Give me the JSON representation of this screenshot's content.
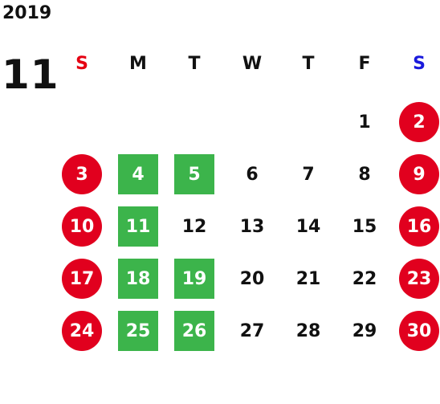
{
  "calendar": {
    "year": "2019",
    "month": "11",
    "weekdays": [
      "S",
      "M",
      "T",
      "W",
      "T",
      "F",
      "S"
    ],
    "weekday_colors": [
      "#e50012",
      "#111111",
      "#111111",
      "#111111",
      "#111111",
      "#111111",
      "#1a1adc"
    ],
    "first_weekday_index": 5,
    "days_in_month": 30,
    "holiday_days": [
      2,
      3,
      9,
      10,
      16,
      17,
      23,
      24,
      30
    ],
    "marked_days": [
      4,
      5,
      11,
      18,
      19,
      25,
      26
    ],
    "colors": {
      "holiday_circle": "#e1001e",
      "marked_square": "#3cb44b",
      "text": "#111111",
      "background": "#ffffff"
    }
  }
}
